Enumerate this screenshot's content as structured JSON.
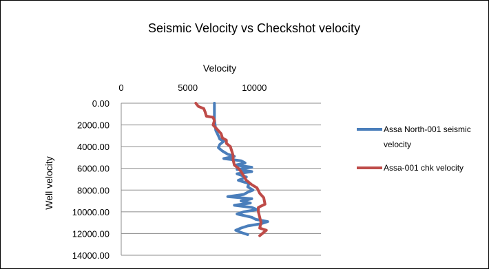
{
  "chart_data": {
    "type": "line",
    "title": "Seismic Velocity vs Checkshot velocity",
    "xlabel": "Velocity",
    "ylabel": "Well velocity",
    "xlim": [
      0,
      15000
    ],
    "ylim": [
      0,
      14000
    ],
    "y_reversed": true,
    "x_axis_position": "top",
    "x_ticks": [
      "0",
      "5000",
      "10000"
    ],
    "x_tick_values": [
      0,
      5000,
      10000
    ],
    "y_ticks": [
      "0.00",
      "2000.00",
      "4000.00",
      "6000.00",
      "8000.00",
      "10000.00",
      "12000.00",
      "14000.00"
    ],
    "y_tick_values": [
      0,
      2000,
      4000,
      6000,
      8000,
      10000,
      12000,
      14000
    ],
    "grid": "horizontal",
    "legend_position": "right",
    "series": [
      {
        "name": "Assa North-001 seismic velocity",
        "color": "#4a7ebb",
        "points": [
          [
            7000,
            0
          ],
          [
            7000,
            500
          ],
          [
            7000,
            1000
          ],
          [
            7000,
            1500
          ],
          [
            7050,
            2000
          ],
          [
            7100,
            2500
          ],
          [
            7300,
            3000
          ],
          [
            7400,
            3300
          ],
          [
            7700,
            3500
          ],
          [
            7400,
            3800
          ],
          [
            7300,
            4100
          ],
          [
            7600,
            4400
          ],
          [
            8000,
            4700
          ],
          [
            8500,
            4900
          ],
          [
            7700,
            5100
          ],
          [
            9000,
            5300
          ],
          [
            9300,
            5500
          ],
          [
            8600,
            5700
          ],
          [
            9800,
            5900
          ],
          [
            8700,
            6100
          ],
          [
            9800,
            6300
          ],
          [
            8700,
            6500
          ],
          [
            9400,
            6800
          ],
          [
            8800,
            7100
          ],
          [
            9600,
            7400
          ],
          [
            9500,
            7700
          ],
          [
            9900,
            8000
          ],
          [
            9500,
            8200
          ],
          [
            9200,
            8400
          ],
          [
            8000,
            8600
          ],
          [
            9800,
            8800
          ],
          [
            9000,
            9000
          ],
          [
            9700,
            9200
          ],
          [
            8500,
            9400
          ],
          [
            9800,
            9600
          ],
          [
            10200,
            9800
          ],
          [
            9200,
            10000
          ],
          [
            8700,
            10200
          ],
          [
            9800,
            10500
          ],
          [
            10100,
            10700
          ],
          [
            11000,
            10900
          ],
          [
            10500,
            11100
          ],
          [
            9500,
            11300
          ],
          [
            9000,
            11500
          ],
          [
            8600,
            11700
          ],
          [
            9000,
            11900
          ],
          [
            9500,
            12100
          ]
        ]
      },
      {
        "name": "Assa-001 chk velocity",
        "color": "#be4b48",
        "points": [
          [
            5600,
            0
          ],
          [
            5800,
            300
          ],
          [
            6200,
            500
          ],
          [
            6300,
            800
          ],
          [
            6400,
            1200
          ],
          [
            6900,
            1300
          ],
          [
            7000,
            1600
          ],
          [
            6900,
            2000
          ],
          [
            7200,
            2400
          ],
          [
            7500,
            2800
          ],
          [
            7600,
            3200
          ],
          [
            7900,
            3400
          ],
          [
            7900,
            3700
          ],
          [
            8200,
            4000
          ],
          [
            8300,
            4400
          ],
          [
            8400,
            4800
          ],
          [
            8400,
            5200
          ],
          [
            8500,
            5700
          ],
          [
            8800,
            6000
          ],
          [
            9000,
            6300
          ],
          [
            9200,
            6700
          ],
          [
            9400,
            7100
          ],
          [
            9800,
            7500
          ],
          [
            10200,
            7800
          ],
          [
            10400,
            8300
          ],
          [
            10700,
            8700
          ],
          [
            10800,
            9300
          ],
          [
            10300,
            9600
          ],
          [
            10300,
            10000
          ],
          [
            10400,
            10500
          ],
          [
            10500,
            11000
          ],
          [
            10400,
            11500
          ],
          [
            10900,
            11700
          ],
          [
            10600,
            12000
          ],
          [
            10400,
            12200
          ]
        ]
      }
    ]
  }
}
